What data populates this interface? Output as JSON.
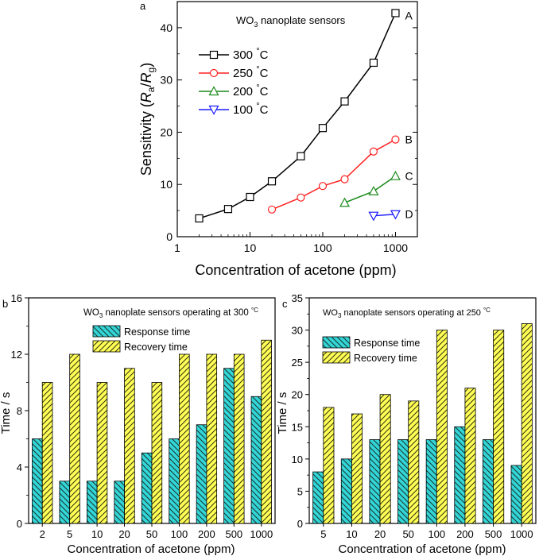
{
  "chart_data": [
    {
      "panel": "a",
      "type": "line",
      "title": "WO₃ nanoplate sensors",
      "title_prefix": "WO",
      "title_sub": "3",
      "title_suffix": " nanoplate sensors",
      "xlabel": "Concentration of acetone (ppm)",
      "ylabel_prefix": "Sensitivity (",
      "ylabel_ra": "R",
      "ylabel_ra_sub": "a",
      "ylabel_slash": "/",
      "ylabel_rg": "R",
      "ylabel_rg_sub": "g",
      "ylabel_suffix": ")",
      "xscale": "log",
      "xlim": [
        1,
        2000
      ],
      "ylim": [
        0,
        45
      ],
      "xticks": [
        1,
        10,
        100,
        1000
      ],
      "xtick_labels": [
        "1",
        "10",
        "100",
        "1000"
      ],
      "yticks": [
        0,
        10,
        20,
        30,
        40
      ],
      "ytick_labels": [
        "0",
        "10",
        "20",
        "30",
        "40"
      ],
      "legend_position": "upper-left",
      "series": [
        {
          "name": "300 °C",
          "label_value": "300 ",
          "label_unit": "°C",
          "color": "#000000",
          "marker": "square",
          "end_label": "A",
          "x": [
            2,
            5,
            10,
            20,
            50,
            100,
            200,
            500,
            1000
          ],
          "y": [
            3.5,
            5.3,
            7.6,
            10.6,
            15.4,
            20.8,
            25.9,
            33.3,
            42.8
          ]
        },
        {
          "name": "250 °C",
          "label_value": "250 ",
          "label_unit": "°C",
          "color": "#ff2020",
          "marker": "circle",
          "end_label": "B",
          "x": [
            20,
            50,
            100,
            200,
            500,
            1000
          ],
          "y": [
            5.2,
            7.5,
            9.7,
            11.0,
            16.3,
            18.6
          ]
        },
        {
          "name": "200 °C",
          "label_value": "200 ",
          "label_unit": "°C",
          "color": "#1a8a1a",
          "marker": "triangle-up",
          "end_label": "C",
          "x": [
            200,
            500,
            1000
          ],
          "y": [
            6.5,
            8.7,
            11.6
          ]
        },
        {
          "name": "100 °C",
          "label_value": "100 ",
          "label_unit": "°C",
          "color": "#1a1aff",
          "marker": "triangle-down",
          "end_label": "D",
          "x": [
            500,
            1000
          ],
          "y": [
            4.0,
            4.3
          ]
        }
      ]
    },
    {
      "panel": "b",
      "type": "bar",
      "title_prefix": "WO",
      "title_sub": "3",
      "title_suffix": " nanoplate sensors operating at 300 ",
      "title_unit": "°C",
      "xlabel": "Concentration of acetone (ppm)",
      "ylabel": "Time / s",
      "ylim": [
        0,
        16
      ],
      "yticks": [
        0,
        4,
        8,
        12,
        16
      ],
      "ytick_labels": [
        "0",
        "4",
        "8",
        "12",
        "16"
      ],
      "categories": [
        "2",
        "5",
        "10",
        "20",
        "50",
        "100",
        "200",
        "500",
        "1000"
      ],
      "legend_position": "upper-left",
      "series": [
        {
          "name": "Response time",
          "color": "#33d6d6",
          "pattern": "diagonal-down",
          "values": [
            6,
            3,
            3,
            3,
            5,
            6,
            7,
            11,
            9
          ]
        },
        {
          "name": "Recovery time",
          "color": "#ffff55",
          "pattern": "diagonal-up",
          "values": [
            10,
            12,
            10,
            11,
            10,
            12,
            12,
            12,
            13
          ]
        }
      ]
    },
    {
      "panel": "c",
      "type": "bar",
      "title_prefix": "WO",
      "title_sub": "3",
      "title_suffix": " nanoplate sensors operating at 250 ",
      "title_unit": "°C",
      "xlabel": "Concentration of acetone (ppm)",
      "ylabel": "Time / s",
      "ylim": [
        0,
        35
      ],
      "yticks": [
        0,
        5,
        10,
        15,
        20,
        25,
        30,
        35
      ],
      "ytick_labels": [
        "0",
        "5",
        "10",
        "15",
        "20",
        "25",
        "30",
        "35"
      ],
      "categories": [
        "5",
        "10",
        "20",
        "50",
        "100",
        "200",
        "500",
        "1000"
      ],
      "legend_position": "upper-left",
      "series": [
        {
          "name": "Response time",
          "color": "#33d6d6",
          "pattern": "diagonal-down",
          "values": [
            8,
            10,
            13,
            13,
            13,
            15,
            13,
            9
          ]
        },
        {
          "name": "Recovery time",
          "color": "#ffff55",
          "pattern": "diagonal-up",
          "values": [
            18,
            17,
            20,
            19,
            30,
            21,
            30,
            31
          ]
        }
      ]
    }
  ]
}
